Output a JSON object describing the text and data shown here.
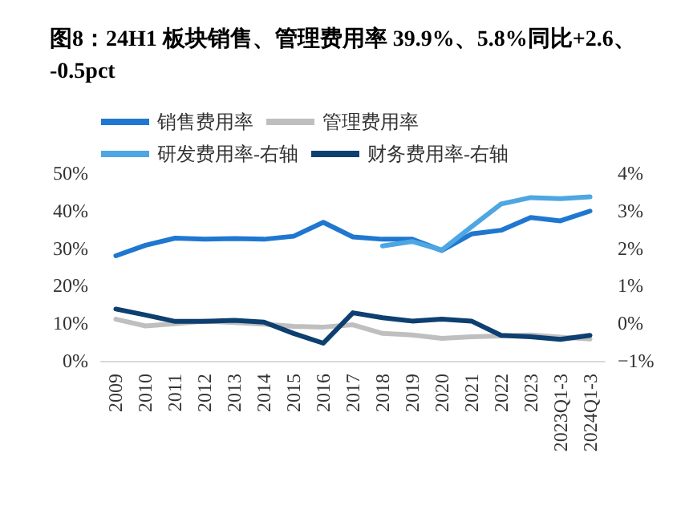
{
  "chart_data": {
    "type": "line",
    "title": "图8：24H1 板块销售、管理费用率 39.9%、5.8%同比+2.6、-0.5pct",
    "categories": [
      "2009",
      "2010",
      "2011",
      "2012",
      "2013",
      "2014",
      "2015",
      "2016",
      "2017",
      "2018",
      "2019",
      "2020",
      "2021",
      "2022",
      "2023",
      "2023Q1-3",
      "2024Q1-3"
    ],
    "series": [
      {
        "name": "销售费用率",
        "color": "#1f77d0",
        "values": [
          28.0,
          30.8,
          32.7,
          32.4,
          32.6,
          32.4,
          33.2,
          36.9,
          33.0,
          32.4,
          32.4,
          29.4,
          33.8,
          34.8,
          38.2,
          37.3,
          39.9
        ]
      },
      {
        "name": "管理费用率",
        "color": "#bfbfbf",
        "values": [
          11.1,
          9.3,
          9.9,
          10.6,
          10.2,
          9.8,
          9.2,
          9.0,
          9.6,
          7.3,
          6.9,
          6.0,
          6.4,
          6.6,
          6.9,
          6.3,
          5.8
        ]
      },
      {
        "name": "研发费用率-右轴",
        "color": "#4ea6e2",
        "axis": "y2",
        "values": [
          null,
          null,
          null,
          null,
          null,
          null,
          null,
          null,
          null,
          2.06,
          2.18,
          1.95,
          2.57,
          3.18,
          3.35,
          3.32,
          3.37
        ]
      },
      {
        "name": "财务费用率-右轴",
        "color": "#0d3f70",
        "axis": "y2",
        "values": [
          0.38,
          0.22,
          0.05,
          0.05,
          0.08,
          0.03,
          -0.27,
          -0.53,
          0.28,
          0.15,
          0.06,
          0.11,
          0.06,
          -0.32,
          -0.36,
          -0.43,
          -0.32
        ]
      }
    ],
    "ylim": [
      0,
      50
    ],
    "yticks": [
      {
        "value": 0,
        "label": "0%"
      },
      {
        "value": 10,
        "label": "10%"
      },
      {
        "value": 20,
        "label": "20%"
      },
      {
        "value": 30,
        "label": "30%"
      },
      {
        "value": 40,
        "label": "40%"
      },
      {
        "value": 50,
        "label": "50%"
      }
    ],
    "y2lim": [
      -1,
      4
    ],
    "y2ticks": [
      {
        "value": -1,
        "label": "−1%"
      },
      {
        "value": 0,
        "label": "0%"
      },
      {
        "value": 1,
        "label": "1%"
      },
      {
        "value": 2,
        "label": "2%"
      },
      {
        "value": 3,
        "label": "3%"
      },
      {
        "value": 4,
        "label": "4%"
      }
    ],
    "grid": false,
    "legend": "top",
    "marker": "none",
    "line_style": "solid"
  }
}
